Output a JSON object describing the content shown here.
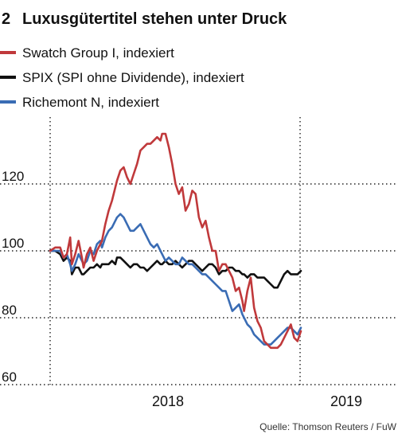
{
  "header": {
    "figure_number": "2",
    "title": "Luxusgütertitel stehen unter Druck"
  },
  "legend": [
    {
      "label": "Swatch Group I, indexiert",
      "color": "#c0393b"
    },
    {
      "label": "SPIX (SPI ohne Dividende), indexiert",
      "color": "#111111"
    },
    {
      "label": "Richemont N, indexiert",
      "color": "#3a6cb4"
    }
  ],
  "source": "Quelle: Thomson Reuters / FuW",
  "chart_data": {
    "type": "line",
    "title": "Luxusgütertitel stehen unter Druck",
    "xlabel": "",
    "ylabel": "",
    "x_ticks": [
      "2018",
      "2019"
    ],
    "y_ticks": [
      60,
      80,
      100,
      120
    ],
    "ylim": [
      60,
      140
    ],
    "xlim": [
      0,
      156
    ],
    "grid": "dotted",
    "legend_position": "top",
    "series": [
      {
        "name": "Swatch Group I, indexiert",
        "color": "#c0393b",
        "x": [
          0,
          3,
          6,
          8,
          10,
          12,
          13,
          15,
          17,
          19,
          20,
          22,
          24,
          26,
          28,
          30,
          31,
          33,
          35,
          37,
          39,
          40,
          42,
          44,
          46,
          48,
          50,
          52,
          54,
          56,
          58,
          60,
          62,
          64,
          66,
          67,
          69,
          71,
          73,
          75,
          77,
          79,
          81,
          83,
          85,
          87,
          89,
          91,
          93,
          95,
          97,
          99,
          101,
          103,
          105,
          107,
          109,
          111,
          113,
          115,
          116,
          118,
          120,
          122,
          124,
          126,
          128,
          130,
          132,
          134,
          136,
          138,
          140,
          142,
          144,
          146,
          148,
          150
        ],
        "values": [
          100,
          101,
          101,
          98,
          99,
          104,
          96,
          99,
          103,
          98,
          95,
          99,
          101,
          97,
          100,
          102,
          103,
          108,
          112,
          115,
          119,
          121,
          124,
          125,
          122,
          120,
          123,
          126,
          130,
          131,
          132,
          132,
          133,
          134,
          133,
          135,
          135,
          131,
          126,
          120,
          117,
          119,
          112,
          114,
          118,
          117,
          110,
          107,
          109,
          104,
          100,
          100,
          94,
          96,
          96,
          94,
          92,
          88,
          89,
          85,
          82,
          88,
          92,
          83,
          79,
          77,
          73,
          72,
          71,
          71,
          71,
          72,
          74,
          76,
          78,
          74,
          73,
          76
        ]
      },
      {
        "name": "SPIX (SPI ohne Dividende), indexiert",
        "color": "#111111",
        "x": [
          0,
          3,
          6,
          8,
          10,
          12,
          13,
          15,
          17,
          19,
          20,
          22,
          24,
          26,
          28,
          30,
          31,
          33,
          35,
          37,
          39,
          40,
          42,
          44,
          46,
          48,
          50,
          52,
          54,
          56,
          58,
          60,
          62,
          64,
          66,
          67,
          69,
          71,
          73,
          75,
          77,
          79,
          81,
          83,
          85,
          87,
          89,
          91,
          93,
          95,
          97,
          99,
          101,
          103,
          105,
          107,
          109,
          111,
          113,
          115,
          116,
          118,
          120,
          122,
          124,
          126,
          128,
          130,
          132,
          134,
          136,
          138,
          140,
          142,
          144,
          146,
          148,
          150
        ],
        "values": [
          100,
          100,
          99,
          97,
          98,
          97,
          93,
          95,
          95,
          93,
          93,
          94,
          95,
          95,
          96,
          95,
          96,
          96,
          96,
          97,
          96,
          98,
          98,
          97,
          96,
          95,
          96,
          96,
          95,
          95,
          94,
          95,
          96,
          97,
          96,
          96,
          97,
          96,
          96,
          97,
          96,
          95,
          96,
          97,
          97,
          96,
          95,
          94,
          95,
          96,
          96,
          95,
          93,
          94,
          94,
          95,
          95,
          94,
          94,
          93,
          93,
          92,
          93,
          93,
          92,
          92,
          92,
          91,
          90,
          89,
          89,
          91,
          93,
          94,
          93,
          93,
          93,
          94
        ]
      },
      {
        "name": "Richemont N, indexiert",
        "color": "#3a6cb4",
        "x": [
          0,
          3,
          6,
          8,
          10,
          12,
          13,
          15,
          17,
          19,
          20,
          22,
          24,
          26,
          28,
          30,
          31,
          33,
          35,
          37,
          39,
          40,
          42,
          44,
          46,
          48,
          50,
          52,
          54,
          56,
          58,
          60,
          62,
          64,
          66,
          67,
          69,
          71,
          73,
          75,
          77,
          79,
          81,
          83,
          85,
          87,
          89,
          91,
          93,
          95,
          97,
          99,
          101,
          103,
          105,
          107,
          109,
          111,
          113,
          115,
          116,
          118,
          120,
          122,
          124,
          126,
          128,
          130,
          132,
          134,
          136,
          138,
          140,
          142,
          144,
          146,
          148,
          150
        ],
        "values": [
          100,
          100,
          100,
          98,
          99,
          96,
          94,
          96,
          99,
          97,
          96,
          97,
          100,
          99,
          102,
          103,
          101,
          104,
          106,
          107,
          109,
          110,
          111,
          110,
          108,
          106,
          106,
          107,
          108,
          106,
          104,
          102,
          101,
          102,
          100,
          99,
          97,
          98,
          97,
          96,
          96,
          98,
          97,
          96,
          96,
          95,
          94,
          93,
          93,
          92,
          91,
          90,
          89,
          88,
          88,
          85,
          82,
          83,
          84,
          81,
          80,
          78,
          77,
          75,
          74,
          73,
          72,
          72,
          72,
          73,
          74,
          75,
          76,
          77,
          77,
          76,
          75,
          77
        ]
      }
    ]
  }
}
